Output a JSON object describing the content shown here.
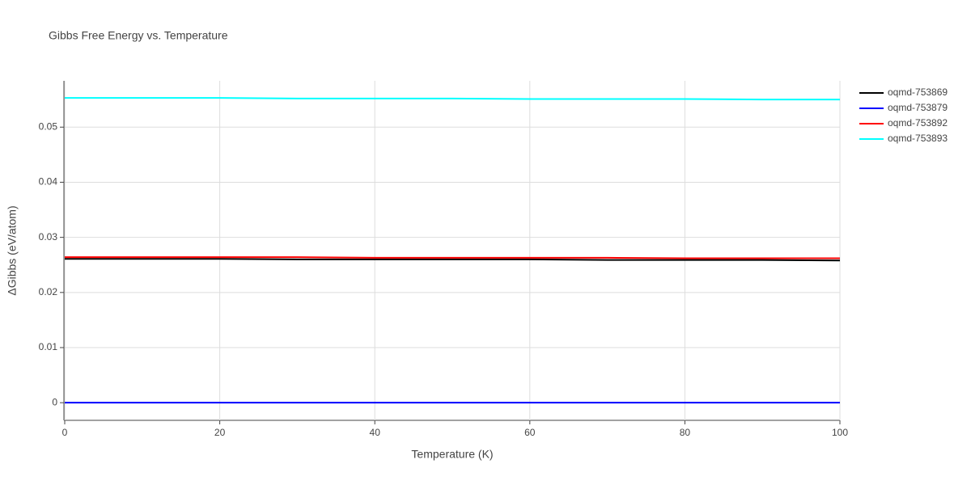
{
  "chart_data": {
    "type": "line",
    "title": "Gibbs Free Energy vs. Temperature",
    "x_label": "Temperature (K)",
    "y_label": "ΔGibbs (eV/atom)",
    "x": [
      0,
      10,
      20,
      30,
      40,
      50,
      60,
      70,
      80,
      90,
      100
    ],
    "series": [
      {
        "name": "oqmd-753869",
        "color": "black",
        "values": [
          0.0261,
          0.0261,
          0.0261,
          0.026,
          0.026,
          0.026,
          0.026,
          0.0259,
          0.0259,
          0.0259,
          0.0258
        ]
      },
      {
        "name": "oqmd-753879",
        "color": "blue",
        "values": [
          0,
          0,
          0,
          0,
          0,
          0,
          0,
          0,
          0,
          0,
          0
        ]
      },
      {
        "name": "oqmd-753892",
        "color": "red",
        "values": [
          0.0264,
          0.0264,
          0.0264,
          0.0264,
          0.0263,
          0.0263,
          0.0263,
          0.0263,
          0.0262,
          0.0262,
          0.0262
        ]
      },
      {
        "name": "oqmd-753893",
        "color": "cyan",
        "values": [
          0.0553,
          0.0553,
          0.0553,
          0.0552,
          0.0552,
          0.0552,
          0.0551,
          0.0551,
          0.0551,
          0.055,
          0.055
        ]
      }
    ],
    "xlim": [
      0,
      100
    ],
    "xticks": [
      0,
      20,
      40,
      60,
      80,
      100
    ],
    "ylim": [
      -0.0032,
      0.0584
    ],
    "yticks": [
      0,
      0.01,
      0.02,
      0.03,
      0.04,
      0.05
    ],
    "grid": true,
    "legend": "right"
  }
}
